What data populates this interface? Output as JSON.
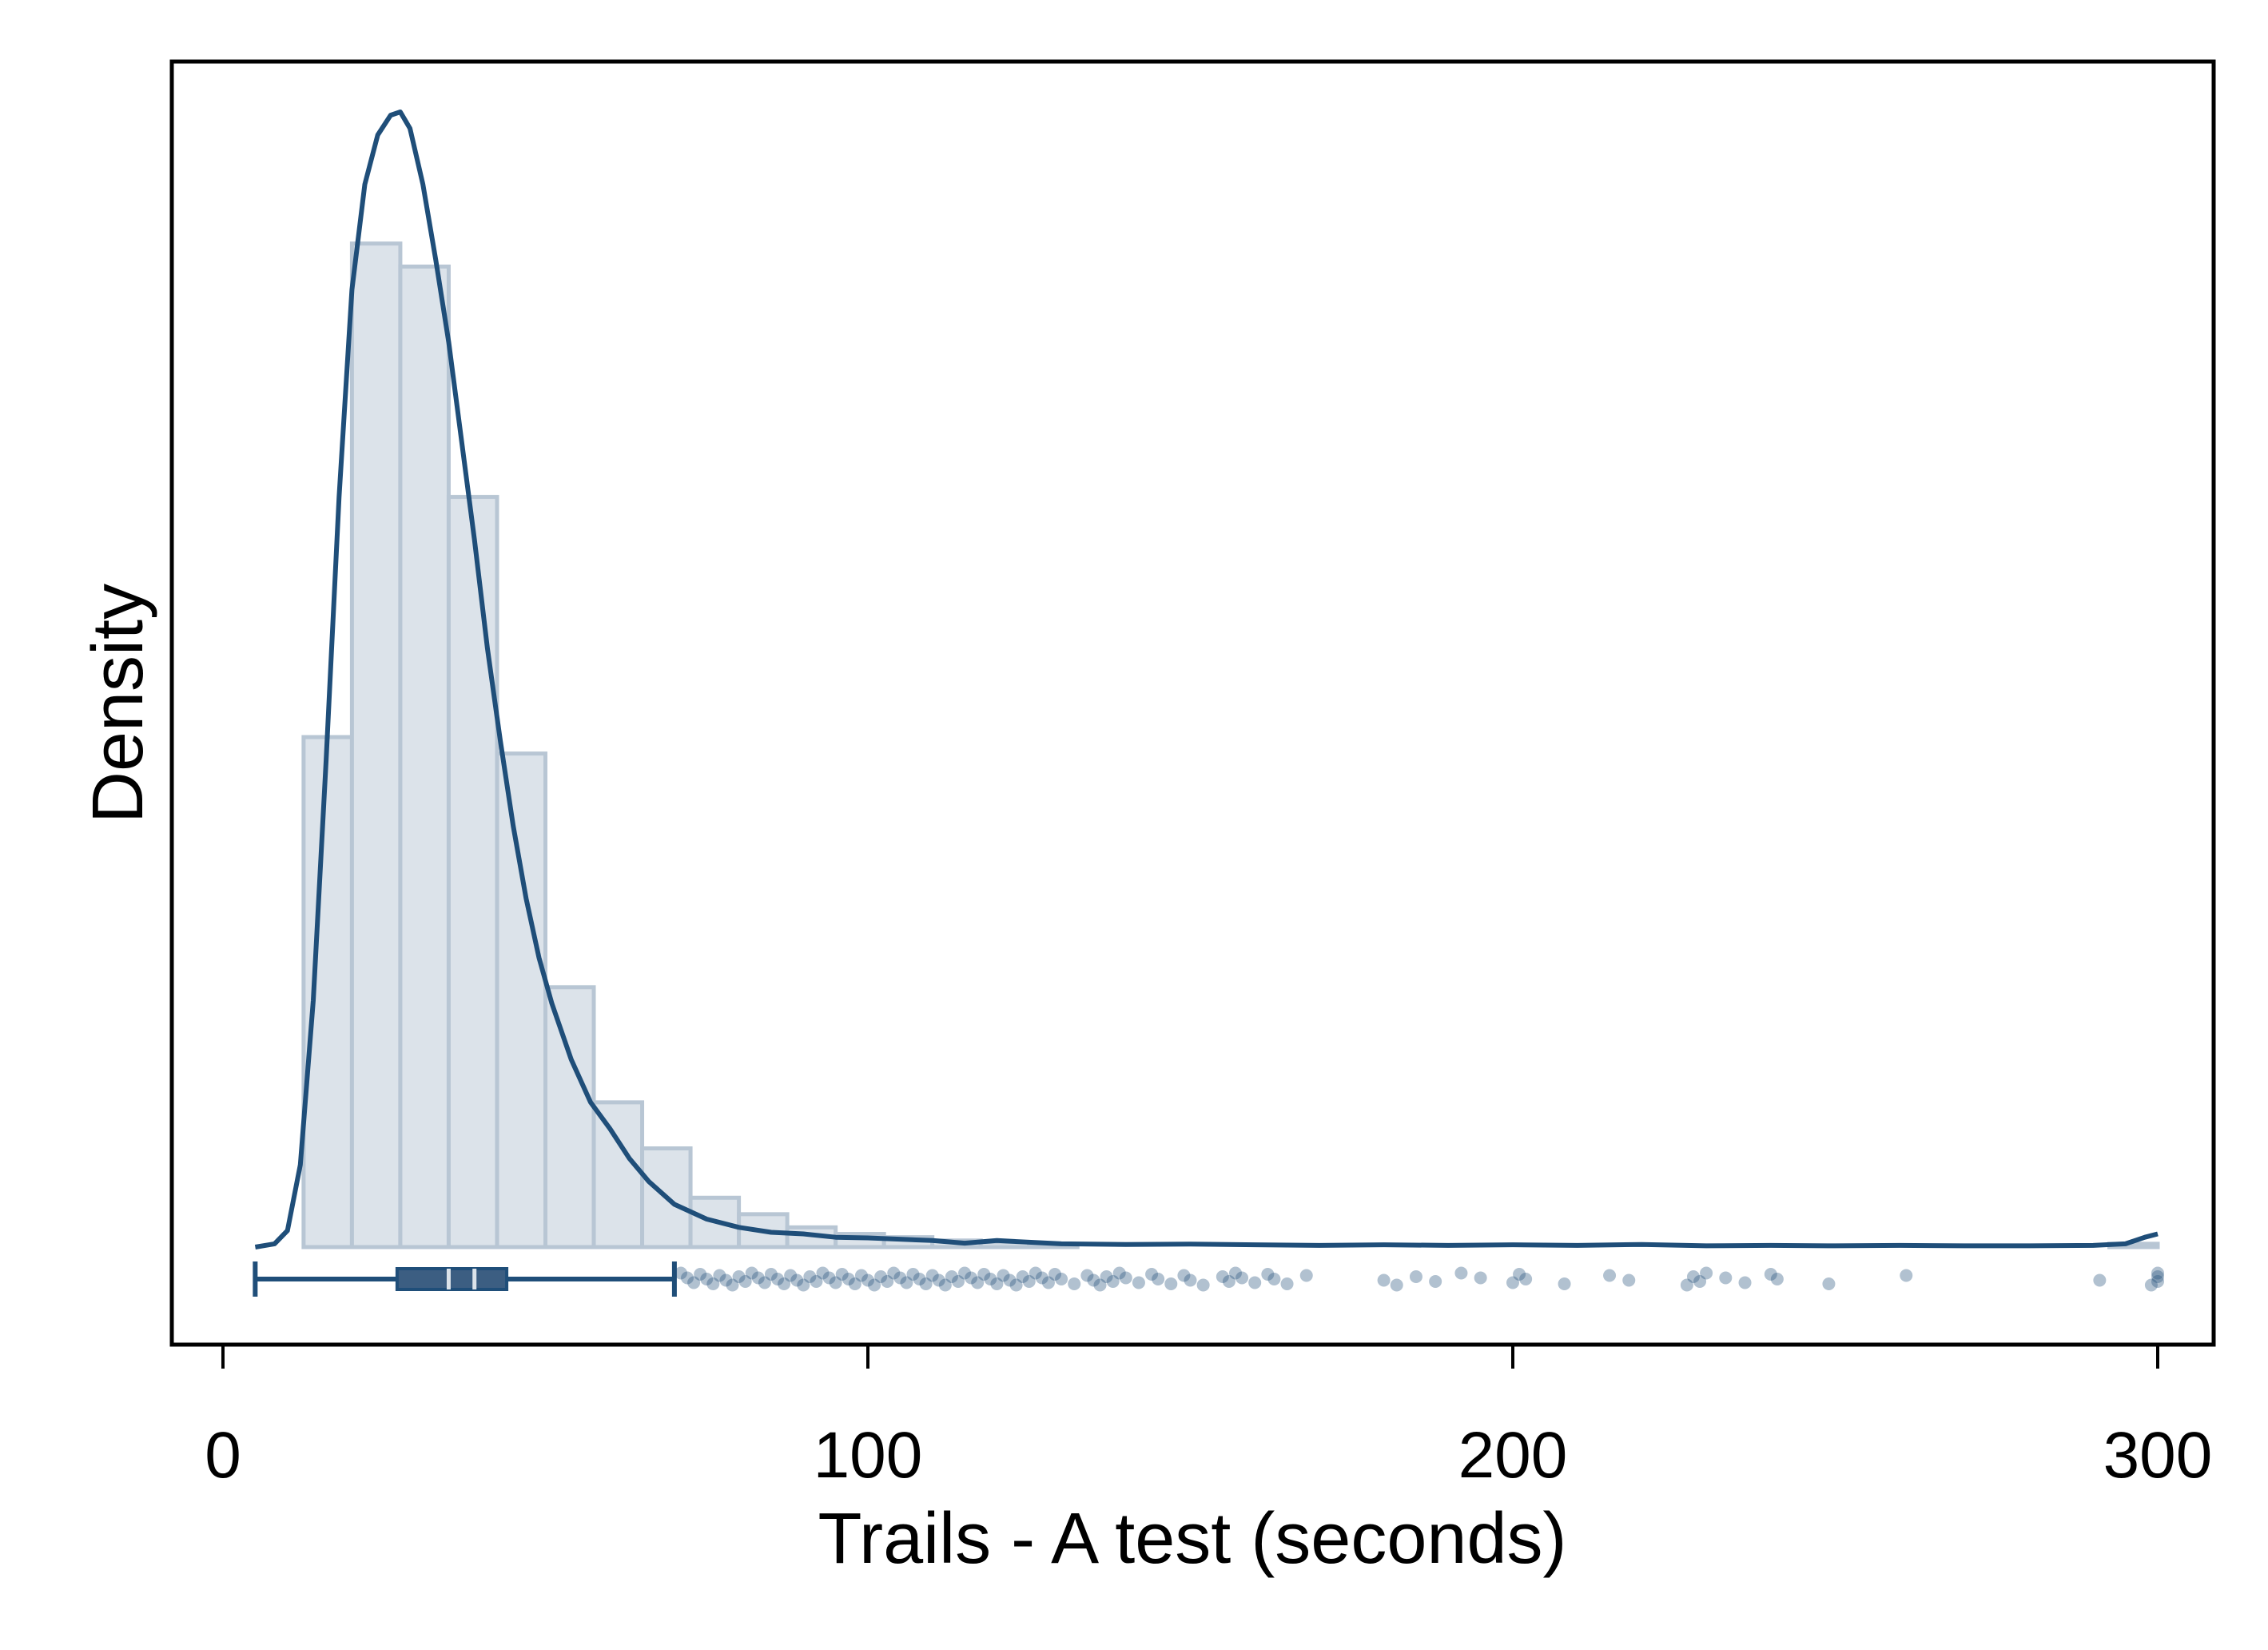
{
  "chart_data": {
    "type": "histogram",
    "title": "",
    "xlabel": "Trails - A test (seconds)",
    "ylabel": "Density",
    "xlim": [
      -8,
      308
    ],
    "x_ticks": [
      0,
      100,
      200,
      300
    ],
    "x_tick_labels": [
      "0",
      "100",
      "200",
      "300"
    ],
    "y_ticks_shown": false,
    "grid": false,
    "histogram": {
      "bin_width": 7.5,
      "bins": [
        {
          "x0": 12.5,
          "x1": 20,
          "density": 0.0155
        },
        {
          "x0": 20,
          "x1": 27.5,
          "density": 0.0305
        },
        {
          "x0": 27.5,
          "x1": 35,
          "density": 0.0298
        },
        {
          "x0": 35,
          "x1": 42.5,
          "density": 0.0228
        },
        {
          "x0": 42.5,
          "x1": 50,
          "density": 0.015
        },
        {
          "x0": 50,
          "x1": 57.5,
          "density": 0.0079
        },
        {
          "x0": 57.5,
          "x1": 65,
          "density": 0.0044
        },
        {
          "x0": 65,
          "x1": 72.5,
          "density": 0.003
        },
        {
          "x0": 72.5,
          "x1": 80,
          "density": 0.0015
        },
        {
          "x0": 80,
          "x1": 87.5,
          "density": 0.001
        },
        {
          "x0": 87.5,
          "x1": 95,
          "density": 0.0006
        },
        {
          "x0": 95,
          "x1": 102.5,
          "density": 0.0004
        },
        {
          "x0": 102.5,
          "x1": 110,
          "density": 0.0003
        },
        {
          "x0": 110,
          "x1": 117.5,
          "density": 0.0002
        },
        {
          "x0": 117.5,
          "x1": 125,
          "density": 0.00015
        },
        {
          "x0": 125,
          "x1": 132.5,
          "density": 0.0001
        },
        {
          "x0": 292.5,
          "x1": 300,
          "density": 0.0001
        }
      ]
    },
    "density_curve": {
      "x": [
        5,
        8,
        10,
        12,
        14,
        16,
        18,
        20,
        22,
        24,
        26,
        27.5,
        29,
        31,
        33,
        35,
        37,
        39,
        41,
        43,
        45,
        47,
        49,
        51,
        54,
        57,
        60,
        63,
        66,
        70,
        75,
        80,
        85,
        90,
        95,
        100,
        110,
        115,
        120,
        130,
        140,
        150,
        160,
        170,
        180,
        190,
        200,
        210,
        220,
        230,
        240,
        250,
        260,
        270,
        280,
        290,
        295,
        298,
        300
      ],
      "y": [
        0.0,
        0.0001,
        0.0005,
        0.0025,
        0.0075,
        0.0148,
        0.0228,
        0.0291,
        0.0323,
        0.0338,
        0.0344,
        0.0345,
        0.034,
        0.0323,
        0.03,
        0.0275,
        0.0245,
        0.0215,
        0.0182,
        0.0154,
        0.0128,
        0.0106,
        0.0088,
        0.0074,
        0.0057,
        0.0044,
        0.0036,
        0.0027,
        0.002,
        0.0013,
        0.00085,
        0.0006,
        0.00045,
        0.0004,
        0.0003,
        0.00028,
        0.0002,
        0.00012,
        0.0002,
        0.0001,
        8e-05,
        9e-05,
        7e-05,
        5e-05,
        7e-05,
        5e-05,
        7e-05,
        5e-05,
        8e-05,
        4e-05,
        5e-05,
        4e-05,
        5e-05,
        4e-05,
        4e-05,
        5e-05,
        0.0001,
        0.0003,
        0.0004
      ]
    },
    "boxplot": {
      "min": 5,
      "q1": 27,
      "median": 35,
      "mean": 39,
      "q3": 44,
      "upper_whisker": 70,
      "outliers": [
        71,
        72,
        73,
        74,
        75,
        76,
        77,
        78,
        79,
        80,
        81,
        82,
        83,
        84,
        85,
        86,
        87,
        88,
        89,
        90,
        91,
        92,
        93,
        94,
        95,
        96,
        97,
        98,
        99,
        100,
        101,
        102,
        103,
        104,
        105,
        106,
        107,
        108,
        109,
        110,
        111,
        112,
        113,
        114,
        115,
        116,
        117,
        118,
        119,
        120,
        121,
        122,
        123,
        124,
        125,
        126,
        127,
        128,
        129,
        130,
        132,
        134,
        135,
        136,
        137,
        138,
        139,
        140,
        142,
        144,
        145,
        147,
        149,
        150,
        152,
        155,
        156,
        157,
        158,
        160,
        162,
        163,
        165,
        168,
        180,
        182,
        185,
        188,
        192,
        195,
        200,
        201,
        202,
        208,
        215,
        218,
        227,
        228,
        229,
        230,
        233,
        236,
        240,
        241,
        249,
        261,
        291,
        299,
        300,
        300,
        300
      ]
    },
    "colors": {
      "line": "#1f4e79",
      "bar_fill": "#dce3ea",
      "bar_edge": "#b8c6d4",
      "box_fill": "#3c5e82",
      "points": "#1f4e79"
    }
  }
}
